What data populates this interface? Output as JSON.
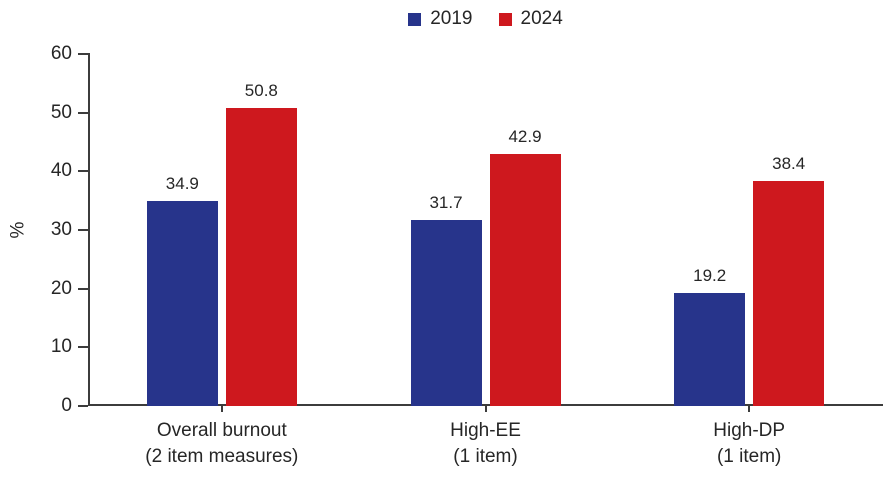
{
  "colors": {
    "background": "#FFFFFF",
    "axis": "#3C3C3C",
    "text": "#262626"
  },
  "chart_data": {
    "type": "bar",
    "ylabel": "%",
    "ylim": [
      0,
      60
    ],
    "yticks": [
      0,
      10,
      20,
      30,
      40,
      50,
      60
    ],
    "grid": false,
    "legend_position": "top-center",
    "value_labels": true,
    "categories": [
      "Overall burnout\n(2 item measures)",
      "High-EE\n(1 item)",
      "High-DP\n(1 item)"
    ],
    "series": [
      {
        "name": "2019",
        "color": "#27348B",
        "values": [
          34.9,
          31.7,
          19.2
        ]
      },
      {
        "name": "2024",
        "color": "#CE181E",
        "values": [
          50.8,
          42.9,
          38.4
        ]
      }
    ]
  }
}
